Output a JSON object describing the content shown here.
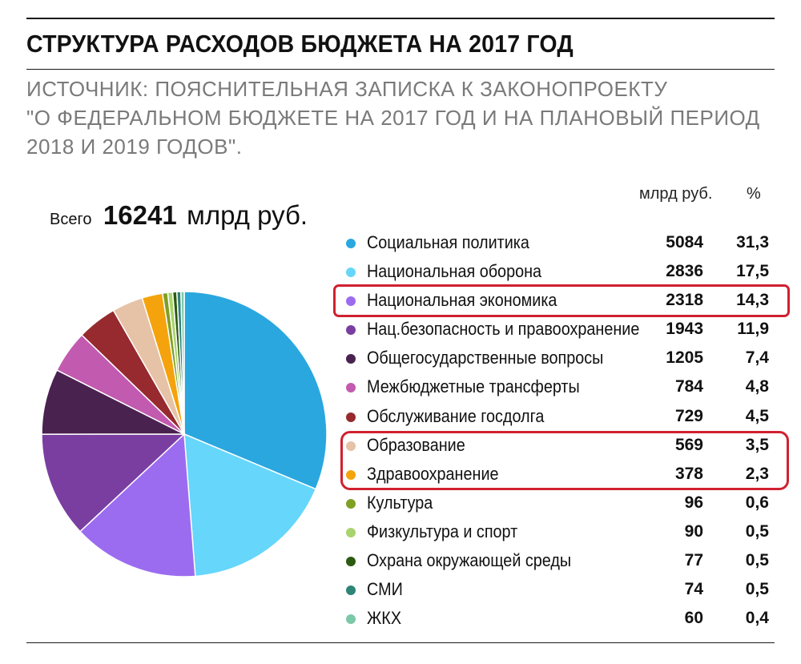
{
  "header": {
    "title": "СТРУКТУРА РАСХОДОВ БЮДЖЕТА НА 2017 ГОД",
    "source_lines": [
      "ИСТОЧНИК: ПОЯСНИТЕЛЬНАЯ ЗАПИСКА К ЗАКОНОПРОЕКТУ",
      "\"О ФЕДЕРАЛЬНОМ БЮДЖЕТЕ НА 2017 ГОД И НА ПЛАНОВЫЙ ПЕРИОД",
      "2018 И 2019 ГОДОВ\"."
    ]
  },
  "total": {
    "label": "Всего",
    "value": "16241",
    "unit": "млрд руб."
  },
  "columns": {
    "units": "млрд руб.",
    "percent": "%"
  },
  "chart_data": {
    "type": "pie",
    "title": "СТРУКТУРА РАСХОДОВ БЮДЖЕТА НА 2017 ГОД",
    "total": 16241,
    "legend_position": "right",
    "slices": [
      {
        "label": "Социальная политика",
        "value": 5084,
        "value_text": "5084",
        "percent": "31,3",
        "color": "#2aa7df"
      },
      {
        "label": "Национальная оборона",
        "value": 2836,
        "value_text": "2836",
        "percent": "17,5",
        "color": "#66d6fb"
      },
      {
        "label": "Национальная экономика",
        "value": 2318,
        "value_text": "2318",
        "percent": "14,3",
        "color": "#9b6cf0"
      },
      {
        "label": "Нац.безопасность и правоохранение",
        "value": 1943,
        "value_text": "1943",
        "percent": "11,9",
        "color": "#7a3ea1"
      },
      {
        "label": "Общегосударственные вопросы",
        "value": 1205,
        "value_text": "1205",
        "percent": "7,4",
        "color": "#4a2250"
      },
      {
        "label": "Межбюджетные трансферты",
        "value": 784,
        "value_text": "784",
        "percent": "4,8",
        "color": "#c25ab0"
      },
      {
        "label": "Обслуживание госдолга",
        "value": 729,
        "value_text": "729",
        "percent": "4,5",
        "color": "#962a2e"
      },
      {
        "label": "Образование",
        "value": 569,
        "value_text": "569",
        "percent": "3,5",
        "color": "#e6c2a6"
      },
      {
        "label": "Здравоохранение",
        "value": 378,
        "value_text": "378",
        "percent": "2,3",
        "color": "#f4a30c"
      },
      {
        "label": "Культура",
        "value": 96,
        "value_text": "96",
        "percent": "0,6",
        "color": "#7fa023"
      },
      {
        "label": "Физкультура и спорт",
        "value": 90,
        "value_text": "90",
        "percent": "0,5",
        "color": "#a9d36e"
      },
      {
        "label": "Охрана окружающей среды",
        "value": 77,
        "value_text": "77",
        "percent": "0,5",
        "color": "#2d5a12"
      },
      {
        "label": "СМИ",
        "value": 74,
        "value_text": "74",
        "percent": "0,5",
        "color": "#2e8577"
      },
      {
        "label": "ЖКХ",
        "value": 60,
        "value_text": "60",
        "percent": "0,4",
        "color": "#7cc8a8"
      }
    ],
    "highlighted": [
      "Национальная экономика",
      "Образование",
      "Здравоохранение"
    ],
    "highlight_color": "#d0212f"
  }
}
